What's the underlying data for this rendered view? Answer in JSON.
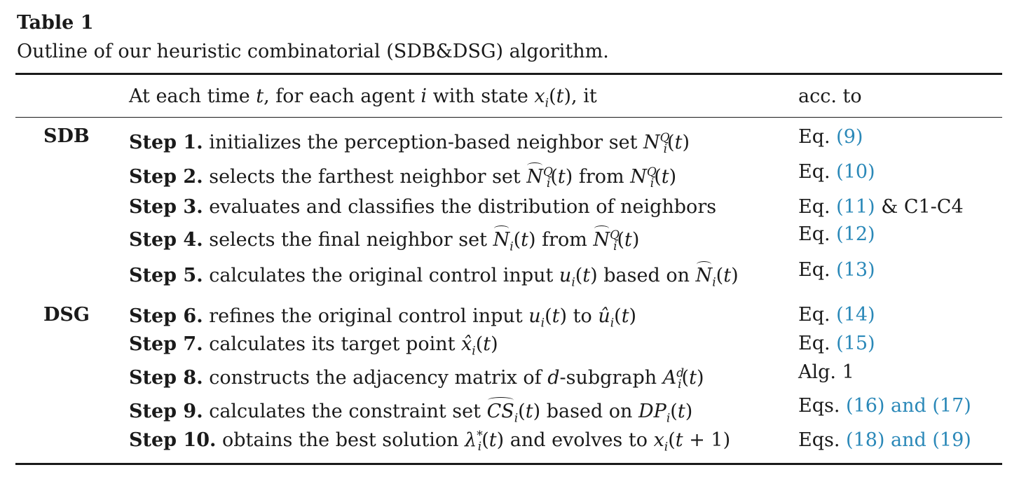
{
  "table": {
    "label": "Table 1",
    "caption": "Outline of our heuristic combinatorial (SDB&DSG) algorithm.",
    "header": {
      "description": "At each time t, for each agent i with state x_i(t), it",
      "reference": "acc. to"
    },
    "groups": [
      {
        "name": "SDB",
        "rows": [
          {
            "step": "Step 1.",
            "text": "initializes the perception-based neighbor set N_i^Q(t)",
            "ref_prefix": "Eq.",
            "ref_link": "(9)",
            "ref_suffix": ""
          },
          {
            "step": "Step 2.",
            "text": "selects the farthest neighbor set N̂_i^Q(t) from N_i^Q(t)",
            "ref_prefix": "Eq.",
            "ref_link": "(10)",
            "ref_suffix": ""
          },
          {
            "step": "Step 3.",
            "text": "evaluates and classifies the distribution of neighbors",
            "ref_prefix": "Eq.",
            "ref_link": "(11)",
            "ref_suffix": "& C1-C4"
          },
          {
            "step": "Step 4.",
            "text": "selects the final neighbor set N̂_i(t) from N̂_i^Q(t)",
            "ref_prefix": "Eq.",
            "ref_link": "(12)",
            "ref_suffix": ""
          },
          {
            "step": "Step 5.",
            "text": "calculates the original control input u_i(t) based on N̂_i(t)",
            "ref_prefix": "Eq.",
            "ref_link": "(13)",
            "ref_suffix": ""
          }
        ]
      },
      {
        "name": "DSG",
        "rows": [
          {
            "step": "Step 6.",
            "text": "refines the original control input u_i(t) to û_i(t)",
            "ref_prefix": "Eq.",
            "ref_link": "(14)",
            "ref_suffix": ""
          },
          {
            "step": "Step 7.",
            "text": "calculates its target point x̂_i(t)",
            "ref_prefix": "Eq.",
            "ref_link": "(15)",
            "ref_suffix": ""
          },
          {
            "step": "Step 8.",
            "text": "constructs the adjacency matrix of d-subgraph A_i^d(t)",
            "ref_prefix": "Alg. 1",
            "ref_link": "",
            "ref_suffix": ""
          },
          {
            "step": "Step 9.",
            "text": "calculates the constraint set CS_i(t) based on DP_i(t)",
            "ref_prefix": "Eqs.",
            "ref_link": "(16) and (17)",
            "ref_suffix": ""
          },
          {
            "step": "Step 10.",
            "text": "obtains the best solution λ_i^*(t) and evolves to x_i(t + 1)",
            "ref_prefix": "Eqs.",
            "ref_link": "(18) and (19)",
            "ref_suffix": ""
          }
        ]
      }
    ],
    "colors": {
      "rule": "#1a1a1a",
      "link": "#2a88b8",
      "text": "#1a1a1a"
    }
  }
}
